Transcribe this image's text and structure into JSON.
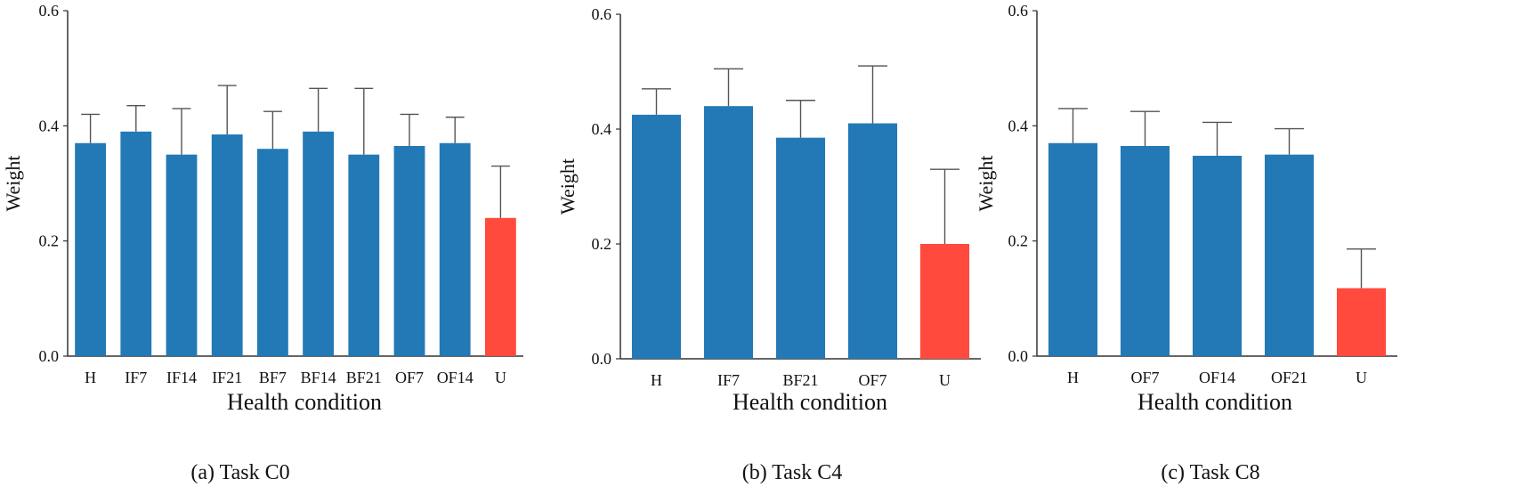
{
  "colors": {
    "bar": "#2279b5",
    "highlight": "#ff4a3d",
    "axis": "#333333",
    "errorbar": "#555555"
  },
  "chart_data": [
    {
      "type": "bar",
      "caption": "(a) Task C0",
      "xlabel": "Health condition",
      "ylabel": "Weight",
      "ylim": [
        0,
        0.6
      ],
      "yticks": [
        "0.0",
        "0.2",
        "0.4",
        "0.6"
      ],
      "categories": [
        "H",
        "IF7",
        "IF14",
        "IF21",
        "BF7",
        "BF14",
        "BF21",
        "OF7",
        "OF14",
        "U"
      ],
      "values": [
        0.37,
        0.39,
        0.35,
        0.385,
        0.36,
        0.39,
        0.35,
        0.365,
        0.37,
        0.24
      ],
      "error": [
        0.05,
        0.045,
        0.08,
        0.085,
        0.065,
        0.075,
        0.115,
        0.055,
        0.045,
        0.09
      ],
      "highlight": [
        "U"
      ]
    },
    {
      "type": "bar",
      "caption": "(b) Task C4",
      "xlabel": "Health condition",
      "ylabel": "Weight",
      "ylim": [
        0,
        0.6
      ],
      "yticks": [
        "0.0",
        "0.2",
        "0.4",
        "0.6"
      ],
      "categories": [
        "H",
        "IF7",
        "BF21",
        "OF7",
        "U"
      ],
      "values": [
        0.425,
        0.44,
        0.385,
        0.41,
        0.2
      ],
      "error": [
        0.045,
        0.065,
        0.065,
        0.1,
        0.13
      ],
      "highlight": [
        "U"
      ]
    },
    {
      "type": "bar",
      "caption": "(c) Task C8",
      "xlabel": "Health condition",
      "ylabel": "Weight",
      "ylim": [
        0,
        0.6
      ],
      "yticks": [
        "0.0",
        "0.2",
        "0.4",
        "0.6"
      ],
      "categories": [
        "H",
        "OF7",
        "OF14",
        "OF21",
        "U"
      ],
      "values": [
        0.37,
        0.365,
        0.348,
        0.35,
        0.118
      ],
      "error": [
        0.06,
        0.06,
        0.058,
        0.045,
        0.068
      ],
      "highlight": [
        "U"
      ]
    }
  ]
}
